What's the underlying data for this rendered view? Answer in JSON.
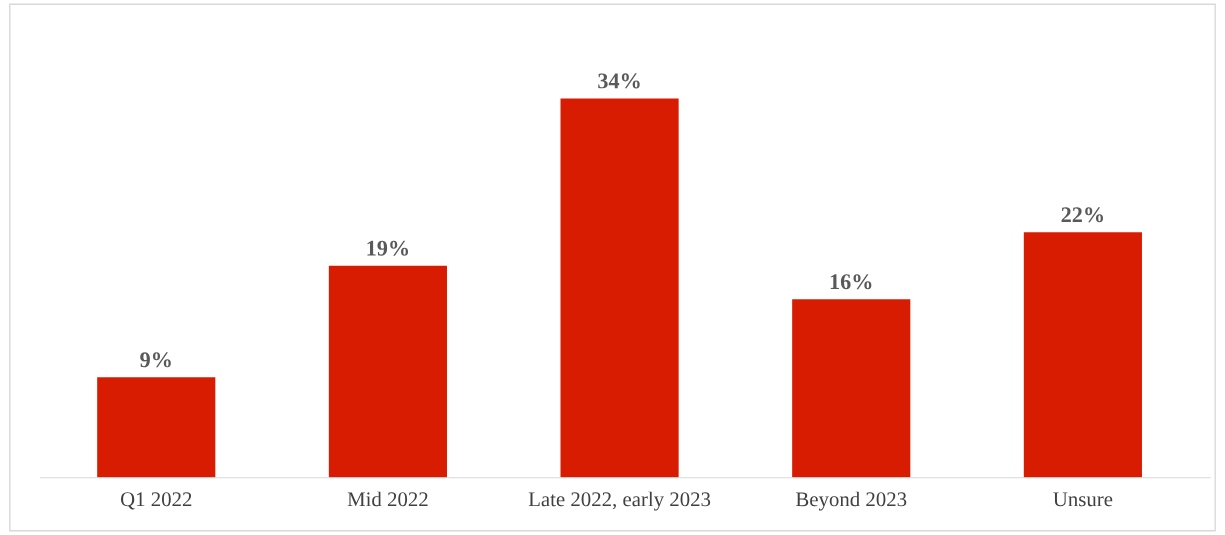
{
  "chart_data": {
    "type": "bar",
    "categories": [
      "Q1 2022",
      "Mid 2022",
      "Late 2022, early 2023",
      "Beyond 2023",
      "Unsure"
    ],
    "values": [
      9,
      19,
      34,
      16,
      22
    ],
    "value_labels": [
      "9%",
      "19%",
      "34%",
      "16%",
      "22%"
    ],
    "color": "#d81c02",
    "tick_labels": "x",
    "grid": false,
    "legend": false
  }
}
